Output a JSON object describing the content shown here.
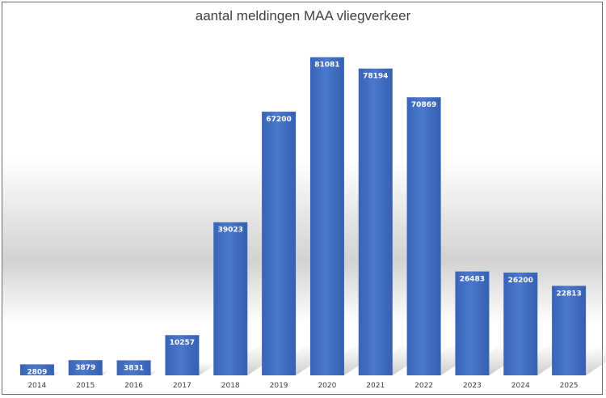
{
  "chart_data": {
    "type": "bar",
    "title": "aantal meldingen MAA vliegverkeer",
    "categories": [
      "2014",
      "2015",
      "2016",
      "2017",
      "2018",
      "2019",
      "2020",
      "2021",
      "2022",
      "2023",
      "2024",
      "2025"
    ],
    "values": [
      2809,
      3879,
      3831,
      10257,
      39023,
      67200,
      81081,
      78194,
      70869,
      26483,
      26200,
      22813
    ],
    "xlabel": "",
    "ylabel": "",
    "ylim": [
      0,
      87000
    ],
    "grid": false,
    "data_labels": true,
    "bar_color": "#4472c4"
  }
}
